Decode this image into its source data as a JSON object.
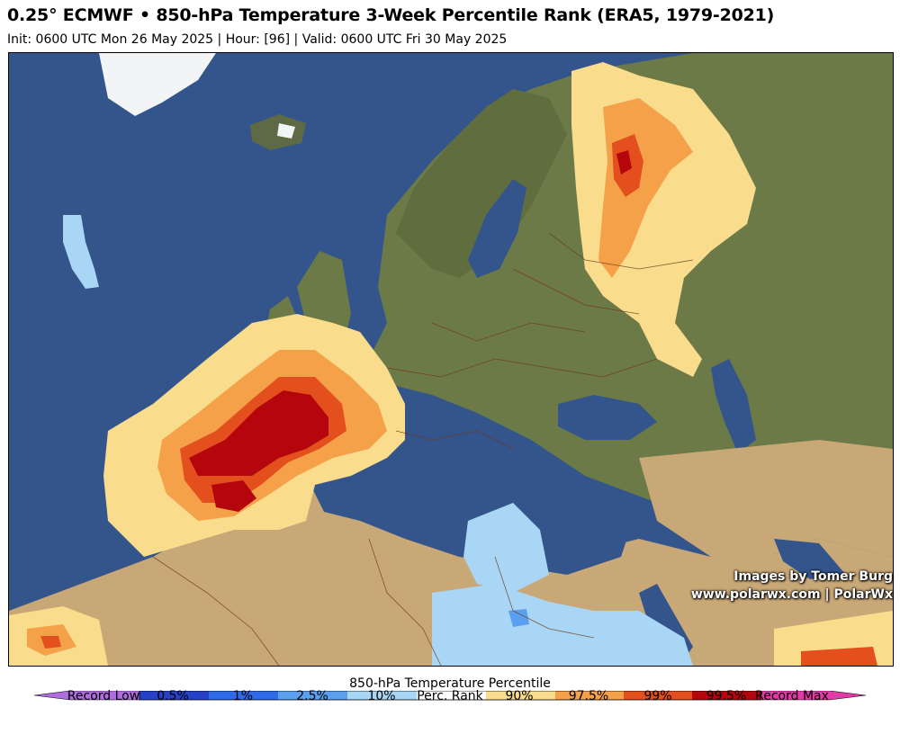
{
  "header": {
    "title": "0.25° ECMWF • 850-hPa Temperature 3-Week Percentile Rank (ERA5, 1979-2021)",
    "subtitle": "Init: 0600 UTC Mon 26 May 2025 | Hour: [96] | Valid: 0600 UTC Fri 30 May 2025"
  },
  "credits": {
    "line1": "Images by Tomer Burg",
    "line2": "www.polarwx.com | PolarWx"
  },
  "colorbar": {
    "title": "850-hPa Temperature Percentile",
    "labels": [
      "Record Low",
      "0.5%",
      "1%",
      "2.5%",
      "10%",
      "Perc. Rank",
      "90%",
      "97.5%",
      "99%",
      "99.5%",
      "Record Max"
    ],
    "colors": {
      "record_low": "#b06de0",
      "p0_5": "#2641c8",
      "p1": "#2f6ae8",
      "p2_5": "#5aa0ee",
      "p10": "#a9d6f5",
      "neutral": "#ffffff",
      "p90": "#f9dc8c",
      "p97_5": "#f5a14a",
      "p99": "#e44f1e",
      "p99_5": "#b4060c",
      "record_max": "#e33aa8"
    }
  },
  "map": {
    "ocean_color": "#33558c",
    "land_color": "#6c7a48",
    "desert_color": "#c9a877",
    "ice_color": "#f2f4f6"
  }
}
